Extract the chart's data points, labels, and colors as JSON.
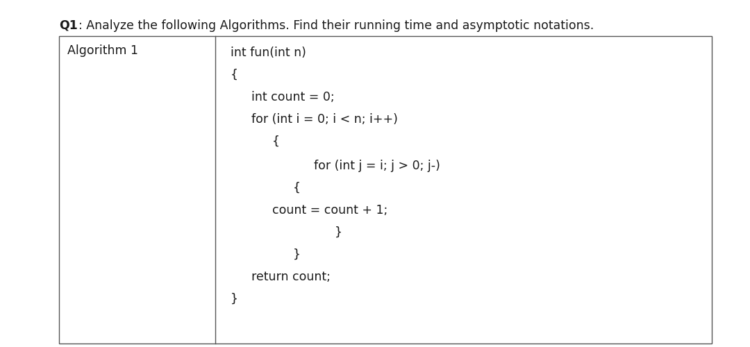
{
  "question": "Q1: Analyze the following Algorithms. Find their running time and asymptotic notations.",
  "question_bold_part": "Q1",
  "algorithm_label": "Algorithm 1",
  "bg_color": "#ffffff",
  "text_color": "#1a1a1a",
  "border_color": "#555555",
  "question_fontsize": 12.5,
  "code_fontsize": 12.5,
  "label_fontsize": 12.5,
  "fig_width": 10.8,
  "fig_height": 5.0,
  "fig_dpi": 100
}
